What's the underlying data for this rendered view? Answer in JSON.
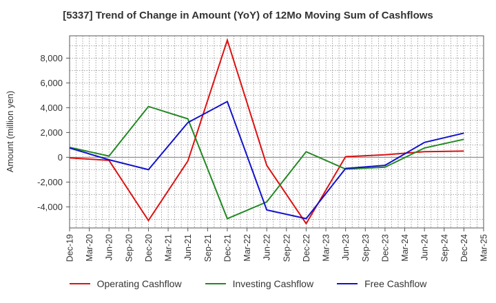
{
  "chart_data": {
    "type": "line",
    "title": "[5337]  Trend of Change in Amount (YoY) of 12Mo Moving Sum of Cashflows",
    "xlabel": "",
    "ylabel": "Amount (million yen)",
    "ylim": [
      -5700,
      9800
    ],
    "grid": true,
    "legend_position": "bottom",
    "x_ticks": [
      "Dec-19",
      "Mar-20",
      "Jun-20",
      "Sep-20",
      "Dec-20",
      "Mar-21",
      "Jun-21",
      "Sep-21",
      "Dec-21",
      "Mar-22",
      "Jun-22",
      "Sep-22",
      "Dec-22",
      "Mar-23",
      "Jun-23",
      "Sep-23",
      "Dec-23",
      "Mar-24",
      "Jun-24",
      "Sep-24",
      "Dec-24",
      "Mar-25"
    ],
    "y_ticks": [
      -4000,
      -2000,
      0,
      2000,
      4000,
      6000,
      8000
    ],
    "y_tick_labels": [
      "-4,000",
      "-2,000",
      "0",
      "2,000",
      "4,000",
      "6,000",
      "8,000"
    ],
    "series": [
      {
        "name": "Operating Cashflow",
        "color": "#dd1111",
        "points": [
          [
            "Dec-19",
            -50
          ],
          [
            "Jun-20",
            -250
          ],
          [
            "Dec-20",
            -5100
          ],
          [
            "Jun-21",
            -300
          ],
          [
            "Dec-21",
            9450
          ],
          [
            "Jun-22",
            -650
          ],
          [
            "Dec-22",
            -5350
          ],
          [
            "Jun-23",
            50
          ],
          [
            "Dec-23",
            200
          ],
          [
            "Jun-24",
            450
          ],
          [
            "Dec-24",
            500
          ]
        ]
      },
      {
        "name": "Investing Cashflow",
        "color": "#228822",
        "points": [
          [
            "Dec-19",
            800
          ],
          [
            "Jun-20",
            100
          ],
          [
            "Dec-20",
            4100
          ],
          [
            "Jun-21",
            3100
          ],
          [
            "Dec-21",
            -4950
          ],
          [
            "Jun-22",
            -3600
          ],
          [
            "Dec-22",
            450
          ],
          [
            "Jun-23",
            -950
          ],
          [
            "Dec-23",
            -800
          ],
          [
            "Jun-24",
            750
          ],
          [
            "Dec-24",
            1450
          ]
        ]
      },
      {
        "name": "Free Cashflow",
        "color": "#1111cc",
        "points": [
          [
            "Dec-19",
            750
          ],
          [
            "Jun-20",
            -200
          ],
          [
            "Dec-20",
            -1000
          ],
          [
            "Jun-21",
            2800
          ],
          [
            "Dec-21",
            4500
          ],
          [
            "Jun-22",
            -4250
          ],
          [
            "Dec-22",
            -4950
          ],
          [
            "Jun-23",
            -900
          ],
          [
            "Dec-23",
            -650
          ],
          [
            "Jun-24",
            1200
          ],
          [
            "Dec-24",
            1950
          ]
        ]
      }
    ]
  }
}
